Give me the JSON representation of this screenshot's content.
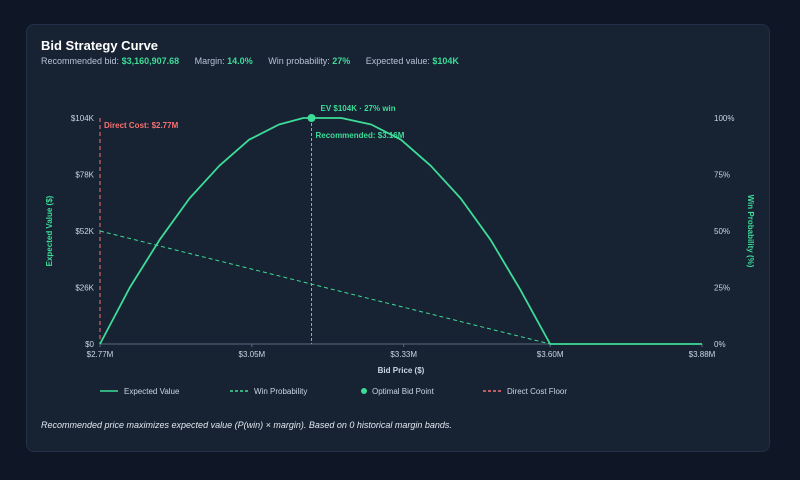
{
  "title": "Bid Strategy Curve",
  "stats": [
    {
      "label": "Recommended bid:",
      "value": "$3,160,907.68"
    },
    {
      "label": "Margin:",
      "value": "14.0%"
    },
    {
      "label": "Win probability:",
      "value": "27%"
    },
    {
      "label": "Expected value:",
      "value": "$104K"
    }
  ],
  "footnote": "Recommended price maximizes expected value (P(win) × margin). Based on 0 historical margin bands.",
  "colors": {
    "expected_value": "#3ddc97",
    "win_probability": "#3ddc97",
    "cost_floor": "#f87171",
    "axis_text": "#cbd5e1",
    "axis_title": "#3ddc97"
  },
  "chart_data": {
    "type": "line",
    "xlabel": "Bid Price ($)",
    "ylabel_left": "Expected Value ($)",
    "ylabel_right": "Win Probability (%)",
    "x_range": [
      2.77,
      3.88
    ],
    "x_ticks": [
      {
        "value": 2.77,
        "label": "$2.77M"
      },
      {
        "value": 3.05,
        "label": "$3.05M"
      },
      {
        "value": 3.33,
        "label": "$3.33M"
      },
      {
        "value": 3.6,
        "label": "$3.60M"
      },
      {
        "value": 3.88,
        "label": "$3.88M"
      }
    ],
    "y_left_range": [
      0,
      104
    ],
    "y_left_ticks": [
      {
        "value": 0,
        "label": "$0"
      },
      {
        "value": 26,
        "label": "$26K"
      },
      {
        "value": 52,
        "label": "$52K"
      },
      {
        "value": 78,
        "label": "$78K"
      },
      {
        "value": 104,
        "label": "$104K"
      }
    ],
    "y_right_range": [
      0,
      100
    ],
    "y_right_ticks": [
      {
        "value": 0,
        "label": "0%"
      },
      {
        "value": 25,
        "label": "25%"
      },
      {
        "value": 50,
        "label": "50%"
      },
      {
        "value": 75,
        "label": "75%"
      },
      {
        "value": 100,
        "label": "100%"
      }
    ],
    "grid": false,
    "legend_position": "bottom",
    "series": [
      {
        "name": "Expected Value",
        "axis": "left",
        "style": "solid",
        "x": [
          2.77,
          2.825,
          2.88,
          2.935,
          2.99,
          3.045,
          3.1,
          3.145,
          3.16,
          3.215,
          3.27,
          3.325,
          3.38,
          3.435,
          3.49,
          3.545,
          3.6,
          3.88
        ],
        "y": [
          0,
          26,
          48,
          67,
          82,
          94,
          101,
          104,
          104,
          104,
          101,
          94,
          82,
          67,
          48,
          25,
          0,
          0
        ]
      },
      {
        "name": "Win Probability",
        "axis": "right",
        "style": "dashed",
        "x": [
          2.77,
          3.6
        ],
        "y": [
          50,
          0
        ]
      }
    ],
    "optimal_point": {
      "name": "Optimal Bid Point",
      "x": 3.16,
      "y": 104,
      "label": "EV $104K · 27% win",
      "marker_label": "Recommended: $3.16M"
    },
    "cost_floor": {
      "name": "Direct Cost Floor",
      "x": 2.77,
      "label": "Direct Cost: $2.77M"
    }
  }
}
